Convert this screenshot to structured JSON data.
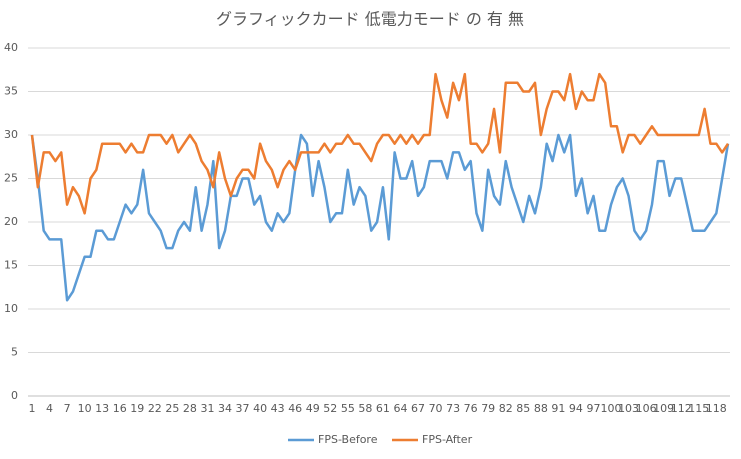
{
  "chart_data": {
    "type": "line",
    "title": "グラフィックカード 低電力モード の 有 無",
    "categories": [
      1,
      null,
      null,
      4,
      null,
      null,
      7,
      null,
      null,
      10,
      null,
      null,
      13,
      null,
      null,
      16,
      null,
      null,
      19,
      null,
      null,
      22,
      null,
      null,
      25,
      null,
      null,
      28,
      null,
      null,
      31,
      null,
      null,
      34,
      null,
      null,
      37,
      null,
      null,
      40,
      null,
      null,
      43,
      null,
      null,
      46,
      null,
      null,
      49,
      null,
      null,
      52,
      null,
      null,
      55,
      null,
      null,
      58,
      null,
      null,
      61,
      null,
      null,
      64,
      null,
      null,
      67,
      null,
      null,
      70,
      null,
      null,
      73,
      null,
      null,
      76,
      null,
      null,
      79,
      null,
      null,
      82,
      null,
      null,
      85,
      null,
      null,
      88,
      null,
      null,
      91,
      null,
      null,
      94,
      null,
      null,
      97,
      null,
      null,
      100,
      null,
      null,
      103,
      null,
      null,
      106,
      null,
      null,
      109,
      null,
      null,
      112,
      null,
      null,
      115,
      null,
      null,
      118,
      null,
      null
    ],
    "series": [
      {
        "name": "FPS-Before",
        "color": "#5b9bd5",
        "values": [
          30,
          25,
          19,
          18,
          18,
          18,
          11,
          12,
          14,
          16,
          16,
          19,
          19,
          18,
          18,
          20,
          22,
          21,
          22,
          26,
          21,
          20,
          19,
          17,
          17,
          19,
          20,
          19,
          24,
          19,
          22,
          27,
          17,
          19,
          23,
          23,
          25,
          25,
          22,
          23,
          20,
          19,
          21,
          20,
          21,
          26,
          30,
          29,
          23,
          27,
          24,
          20,
          21,
          21,
          26,
          22,
          24,
          23,
          19,
          20,
          24,
          18,
          28,
          25,
          25,
          27,
          23,
          24,
          27,
          27,
          27,
          25,
          28,
          28,
          26,
          27,
          21,
          19,
          26,
          23,
          22,
          27,
          24,
          22,
          20,
          23,
          21,
          24,
          29,
          27,
          30,
          28,
          30,
          23,
          25,
          21,
          23,
          19,
          19,
          22,
          24,
          25,
          23,
          19,
          18,
          19,
          22,
          27,
          27,
          23,
          25,
          25,
          22,
          19,
          19,
          19,
          20,
          21,
          25,
          29
        ]
      },
      {
        "name": "FPS-After",
        "color": "#ed7d31",
        "values": [
          30,
          24,
          28,
          28,
          27,
          28,
          22,
          24,
          23,
          21,
          25,
          26,
          29,
          29,
          29,
          29,
          28,
          29,
          28,
          28,
          30,
          30,
          30,
          29,
          30,
          28,
          29,
          30,
          29,
          27,
          26,
          24,
          28,
          25,
          23,
          25,
          26,
          26,
          25,
          29,
          27,
          26,
          24,
          26,
          27,
          26,
          28,
          28,
          28,
          28,
          29,
          28,
          29,
          29,
          30,
          29,
          29,
          28,
          27,
          29,
          30,
          30,
          29,
          30,
          29,
          30,
          29,
          30,
          30,
          37,
          34,
          32,
          36,
          34,
          37,
          29,
          29,
          28,
          29,
          33,
          28,
          36,
          36,
          36,
          35,
          35,
          36,
          30,
          33,
          35,
          35,
          34,
          37,
          33,
          35,
          34,
          34,
          37,
          36,
          31,
          31,
          28,
          30,
          30,
          29,
          30,
          31,
          30,
          30,
          30,
          30,
          30,
          30,
          30,
          30,
          33,
          29,
          29,
          28,
          29
        ]
      }
    ],
    "ylim": [
      0,
      40
    ],
    "yticks": [
      0,
      5,
      10,
      15,
      20,
      25,
      30,
      35,
      40
    ],
    "grid": true,
    "legend": "bottom"
  }
}
